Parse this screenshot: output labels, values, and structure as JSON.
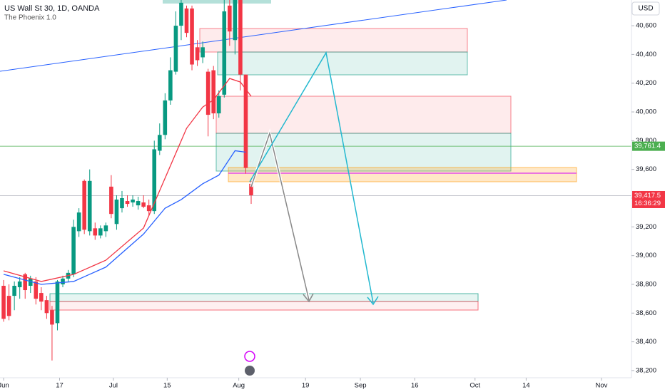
{
  "header": {
    "title": "US Wall St 30, 1D, OANDA",
    "indicator": "The Phoenix 1.0",
    "currency": "USD"
  },
  "chart_data": {
    "type": "candlestick",
    "xlim": [
      -0.67,
      116.67
    ],
    "ylim": [
      38150,
      40779
    ],
    "yticks": [
      {
        "value": 38200,
        "label": "38,200.0"
      },
      {
        "value": 38400,
        "label": "38,400.0"
      },
      {
        "value": 38600,
        "label": "38,600.0"
      },
      {
        "value": 38800,
        "label": "38,800.0"
      },
      {
        "value": 39000,
        "label": "39,000.0"
      },
      {
        "value": 39200,
        "label": "39,200.0"
      },
      {
        "value": 39400,
        "label": "39,400.0"
      },
      {
        "value": 39600,
        "label": "39,600.0"
      },
      {
        "value": 39800,
        "label": "39,800.0"
      },
      {
        "value": 40000,
        "label": "40,000.0"
      },
      {
        "value": 40200,
        "label": "40,200.0"
      },
      {
        "value": 40400,
        "label": "40,400.0"
      },
      {
        "value": 40600,
        "label": "40,600.0"
      }
    ],
    "xticks": [
      {
        "value": 0,
        "label": "Jun"
      },
      {
        "value": 10.4,
        "label": "17"
      },
      {
        "value": 20.4,
        "label": "Jul"
      },
      {
        "value": 30.4,
        "label": "15"
      },
      {
        "value": 43.7,
        "label": "Aug"
      },
      {
        "value": 56.1,
        "label": "19"
      },
      {
        "value": 66.3,
        "label": "Sep"
      },
      {
        "value": 76.4,
        "label": "16"
      },
      {
        "value": 87.6,
        "label": "Oct"
      },
      {
        "value": 97.1,
        "label": "14"
      },
      {
        "value": 111.1,
        "label": "Nov"
      }
    ],
    "up_color": "#089981",
    "down_color": "#f23645",
    "open": [
      38790,
      38720,
      38720,
      38780,
      38870,
      38790,
      38820,
      38740,
      38690,
      38620,
      38530,
      38800,
      38840,
      38870,
      39170,
      39520,
      39170,
      39190,
      39140,
      39170,
      39480,
      39220,
      39330,
      39380,
      39370,
      39350,
      39370,
      39350,
      39310,
      39730,
      39840,
      40080,
      40280,
      40600,
      40720,
      40720,
      40450,
      40380,
      40280,
      40290,
      39990,
      40120,
      40740,
      40500,
      40779,
      40260,
      39500
    ],
    "high": [
      38830,
      38800,
      38820,
      38850,
      38880,
      38860,
      38850,
      38780,
      38720,
      38650,
      38830,
      38860,
      38900,
      39250,
      39330,
      39530,
      39600,
      39230,
      39210,
      39230,
      39560,
      39420,
      39450,
      39420,
      39420,
      39410,
      39420,
      39390,
      39800,
      39920,
      40130,
      40380,
      40700,
      40779,
      40740,
      40740,
      40500,
      40490,
      40300,
      40320,
      40150,
      40779,
      40779,
      40779,
      40779,
      40260,
      39520
    ],
    "low": [
      38540,
      38550,
      38620,
      38700,
      38700,
      38740,
      38660,
      38620,
      38560,
      38270,
      38480,
      38780,
      38820,
      38850,
      39130,
      39150,
      39140,
      39110,
      39120,
      39130,
      39260,
      39180,
      39300,
      39340,
      39340,
      39320,
      39330,
      39280,
      39290,
      39700,
      39810,
      40050,
      40260,
      40500,
      40520,
      40290,
      40320,
      40340,
      39830,
      39950,
      39960,
      40100,
      40460,
      40400,
      40150,
      39570,
      39360
    ],
    "close": [
      38560,
      38580,
      38790,
      38820,
      38760,
      38840,
      38700,
      38680,
      38600,
      38520,
      38820,
      38840,
      38880,
      39200,
      39300,
      39180,
      39520,
      39140,
      39190,
      39210,
      39290,
      39390,
      39400,
      39360,
      39390,
      39380,
      39340,
      39310,
      39740,
      39840,
      40080,
      40290,
      40600,
      40760,
      40550,
      40330,
      40360,
      40450,
      39980,
      39990,
      40110,
      40700,
      40560,
      40779,
      40260,
      39610,
      39420
    ],
    "lines": [
      {
        "color": "#f23645",
        "x": [
          0,
          7,
          13,
          19,
          26,
          30,
          34,
          37,
          39,
          42,
          44,
          46
        ],
        "values": [
          38894,
          38820,
          38869,
          38968,
          39192,
          39539,
          39886,
          40034,
          40084,
          40233,
          40208,
          40109
        ]
      },
      {
        "color": "#2962ff",
        "x": [
          0,
          7,
          13,
          19,
          26,
          30,
          33,
          37,
          40,
          43,
          45
        ],
        "values": [
          38870,
          38800,
          38820,
          38920,
          39150,
          39330,
          39390,
          39500,
          39560,
          39730,
          39720
        ]
      }
    ],
    "price_lines": [
      {
        "value": 39761.4,
        "label": "39,761.4",
        "color": "#4caf50"
      },
      {
        "value": 39417.5,
        "label": "39,417.5",
        "color": "#f23645",
        "line_color": "#b2b5be",
        "countdown": "16:36:29"
      }
    ]
  }
}
